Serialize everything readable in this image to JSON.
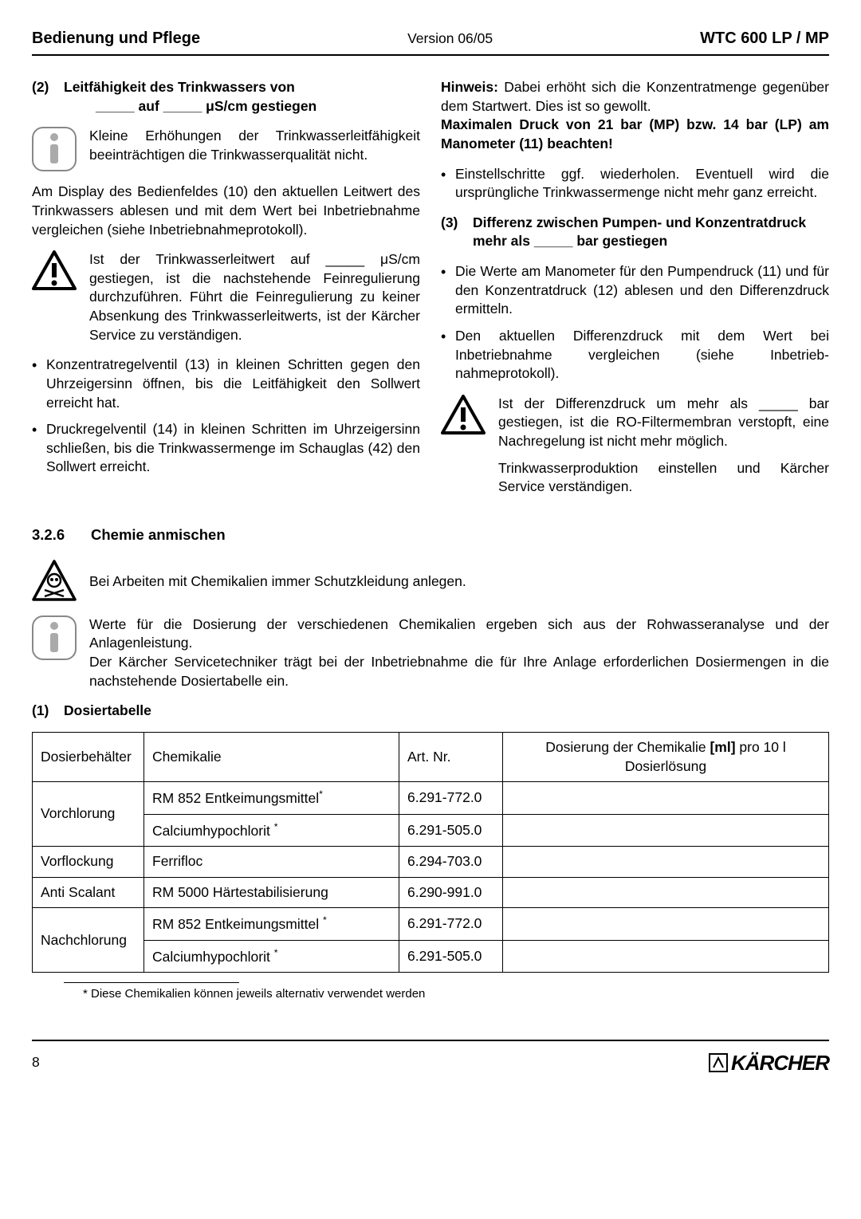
{
  "header": {
    "left": "Bedienung und Pflege",
    "center": "Version 06/05",
    "right": "WTC 600 LP / MP"
  },
  "leftCol": {
    "h2_num": "(2)",
    "h2_text_l1": "Leitfähigkeit des Trinkwassers von",
    "h2_text_l2": "_____ auf _____ μS/cm gestiegen",
    "info1": "Kleine Erhöhungen der Trinkwasser­leitfähigkeit beeinträchtigen die Trink­wasserqualität nicht.",
    "para1": "Am Display des Bedienfeldes (10) den aktuellen Leitwert des Trinkwassers ablesen und mit dem Wert bei Inbetriebnahme vergleichen (siehe Inbe­triebnahmeprotokoll).",
    "warn1": "Ist der Trinkwasserleitwert auf _____ μS/cm gestiegen, ist die nachstehende Feinregulierung durchzuführen. Führt die Feinregulierung zu keiner Ab­senkung des Trinkwasserleitwerts, ist der Kärcher Service zu verständigen.",
    "b1": "Konzentratregelventil (13) in kleinen Schritten gegen den Uhrzeigersinn öffnen, bis die Leitfä­higkeit den Sollwert erreicht hat.",
    "b2": "Druckregelventil (14) in kleinen Schritten im Uhrzeigersinn schließen, bis die Trinkwasser­menge im Schauglas (42) den Sollwert erreicht."
  },
  "rightCol": {
    "hint_label": "Hinweis:",
    "hint_text": " Dabei erhöht sich die Konzentratmenge gegenüber dem Startwert. Dies ist so gewollt.",
    "hint_bold2": "Maximalen Druck von 21 bar (MP) bzw. 14 bar (LP) am Manometer (11) beachten!",
    "b1": "Einstellschritte ggf. wiederholen. Eventuell wird die ursprüngliche Trinkwassermenge nicht mehr ganz erreicht.",
    "h3_num": "(3)",
    "h3_text": "Differenz zwischen Pumpen- und Kon­zentratdruck mehr als _____ bar gestiegen",
    "b2": "Die Werte am Manometer für den Pumpen­druck (11) und für den Konzentratdruck (12) ablesen und den Differenzdruck ermitteln.",
    "b3": "Den aktuellen Differenzdruck mit dem Wert bei Inbetriebnahme vergleichen (siehe Inbetrieb­nahmeprotokoll).",
    "warn2a": "Ist der Differenzdruck um mehr als _____ bar gestiegen, ist die RO-Filter­membran verstopft, eine Nachregelung ist nicht mehr möglich.",
    "warn2b": "Trinkwasserproduktion einstellen und Kärcher Service verständigen."
  },
  "section326": {
    "num": "3.2.6",
    "title": "Chemie anmischen",
    "skull_text": "Bei Arbeiten mit Chemikalien immer Schutzkleidung anlegen.",
    "info_text": "Werte für die Dosierung der verschiedenen Chemikalien ergeben sich aus der Rohwassera­nalyse und der Anlagenleistung.\nDer Kärcher Servicetechniker trägt bei der Inbetriebnahme die für Ihre Anlage erforderlichen Dosiermengen in die nachstehende Dosiertabelle ein.",
    "sub_num": "(1)",
    "sub_title": "Dosiertabelle"
  },
  "table": {
    "headers": {
      "c1": "Dosierbehälter",
      "c2": "Chemikalie",
      "c3": "Art. Nr.",
      "c4a": "Dosierung der Chemikalie ",
      "c4b": "[ml]",
      "c4c": " pro 10 l Dosierlösung"
    },
    "rows": [
      {
        "c1": "Vorchlorung",
        "c2": "RM 852 Entkeimungsmittel",
        "c2sup": "*",
        "c3": "6.291-772.0",
        "rowspan": 2
      },
      {
        "c2": "Calciumhypochlorit ",
        "c2sup": "*",
        "c3": "6.291-505.0"
      },
      {
        "c1": "Vorflockung",
        "c2": "Ferrifloc",
        "c2sup": "",
        "c3": "6.294-703.0",
        "rowspan": 1
      },
      {
        "c1": "Anti Scalant",
        "c2": "RM 5000 Härtestabilisierung",
        "c2sup": "",
        "c3": "6.290-991.0",
        "rowspan": 1
      },
      {
        "c1": "Nachchlorung",
        "c2": "RM 852 Entkeimungsmittel ",
        "c2sup": "*",
        "c3": "6.291-772.0",
        "rowspan": 2
      },
      {
        "c2": "Calciumhypochlorit ",
        "c2sup": "*",
        "c3": "6.291-505.0"
      }
    ]
  },
  "footnote": "* Diese Chemikalien können jeweils alternativ verwendet werden",
  "footer": {
    "page": "8",
    "logo": "KÄRCHER"
  },
  "colors": {
    "text": "#000000",
    "iconGray": "#888888"
  }
}
